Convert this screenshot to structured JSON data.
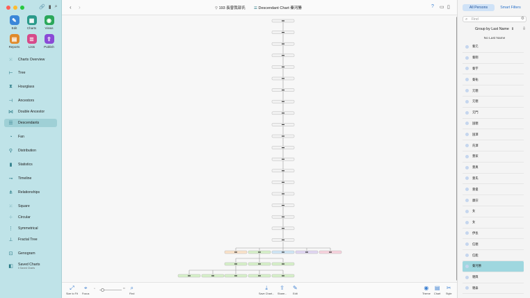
{
  "window": {
    "title": "193 長曽我部氏",
    "chart_title": "Descendant Chart 秦河勝"
  },
  "app_buttons": [
    {
      "label": "Edit",
      "icon": "pencil-icon",
      "color": "#3a86d8"
    },
    {
      "label": "Charts",
      "icon": "charts-icon",
      "color": "#2a9a8a"
    },
    {
      "label": "Views",
      "icon": "eye-icon",
      "color": "#2aa75a"
    },
    {
      "label": "Reports",
      "icon": "reports-icon",
      "color": "#e08a2a"
    },
    {
      "label": "Lists",
      "icon": "lists-icon",
      "color": "#d64a8a"
    },
    {
      "label": "Publish",
      "icon": "publish-icon",
      "color": "#8a4ad6"
    }
  ],
  "nav": [
    {
      "label": "Charts Overview",
      "icon": "grid-icon",
      "active": false
    },
    {
      "label": "Tree",
      "icon": "tree-icon",
      "active": false
    },
    {
      "label": "Hourglass",
      "icon": "hourglass-icon",
      "active": false
    },
    {
      "label": "Ancestors",
      "icon": "ancestors-icon",
      "active": false
    },
    {
      "label": "Double Ancestor",
      "icon": "double-ancestor-icon",
      "active": false
    },
    {
      "label": "Descendants",
      "icon": "descendants-icon",
      "active": true
    },
    {
      "label": "Fan",
      "icon": "fan-icon",
      "active": false
    },
    {
      "label": "Distribution",
      "icon": "distribution-icon",
      "active": false
    },
    {
      "label": "Statistics",
      "icon": "statistics-icon",
      "active": false
    },
    {
      "label": "Timeline",
      "icon": "timeline-icon",
      "active": false
    },
    {
      "label": "Relationships",
      "icon": "relationships-icon",
      "active": false
    },
    {
      "label": "Square",
      "icon": "square-icon",
      "active": false
    },
    {
      "label": "Circular",
      "icon": "circular-icon",
      "active": false
    },
    {
      "label": "Symmetrical",
      "icon": "symmetrical-icon",
      "active": false
    },
    {
      "label": "Fractal Tree",
      "icon": "fractal-tree-icon",
      "active": false
    },
    {
      "label": "Genogram",
      "icon": "genogram-icon",
      "active": false
    },
    {
      "label": "Saved Charts",
      "icon": "saved-charts-icon",
      "active": false,
      "sub": "0 Saved Charts"
    }
  ],
  "bottom": {
    "size_to_fit": "Size to Fit",
    "focus": "Focus",
    "find": "Find",
    "save_chart": "Save Chart...",
    "share": "Share...",
    "edit": "Edit",
    "theme": "Theme",
    "chart": "Chart",
    "style": "Style"
  },
  "panel": {
    "tab_all": "All Persons",
    "tab_filters": "Smart Filters",
    "search_placeholder": "Find",
    "group_by": "Group by Last Name",
    "section": "No Last Name",
    "persons": [
      "秦元",
      "秦剛",
      "秦字",
      "秦祐",
      "元親",
      "元親",
      "元門",
      "国親",
      "国澤",
      "氏澤",
      "重家",
      "重真",
      "重氏",
      "重俊",
      "康宗",
      "女",
      "女",
      "伊長",
      "信親",
      "信能",
      "秦河勝",
      "親興",
      "親泰"
    ],
    "selected_index": 20
  },
  "chart_data": {
    "type": "descendant-tree",
    "generations": 20,
    "nodes_per_generation_tail": [
      5,
      3,
      5
    ],
    "colors": {
      "male": "#f2f2f2",
      "green": "#d6f0c8",
      "orange": "#fbe2c8",
      "blue": "#cfe6f6",
      "purple": "#e0d6f2",
      "pink": "#f7d2dd",
      "line": "#9a9a9a"
    }
  }
}
